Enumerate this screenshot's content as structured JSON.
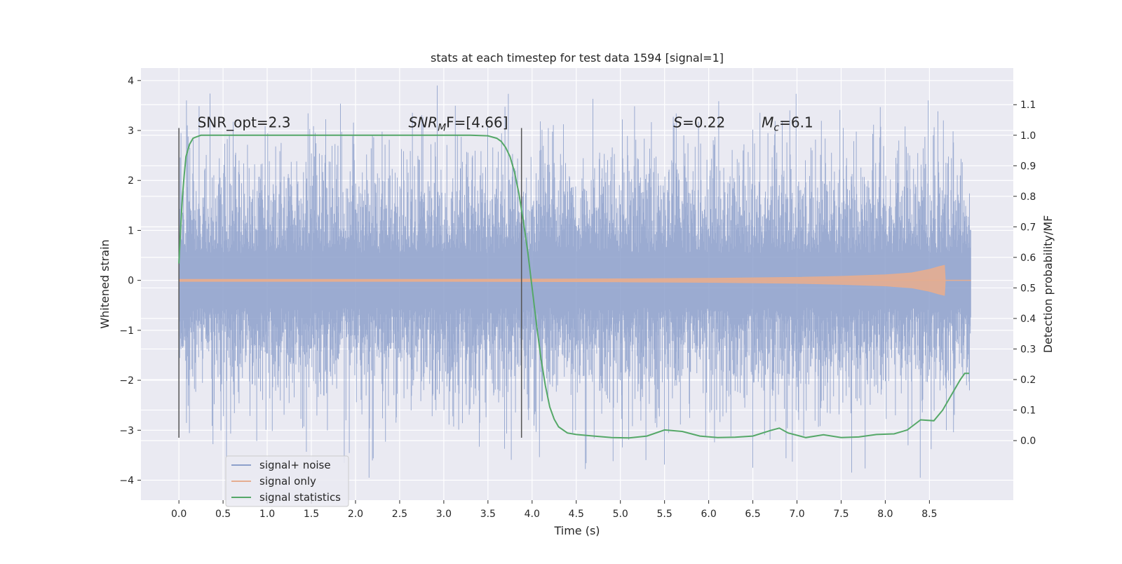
{
  "chart_data": {
    "type": "line",
    "title": "stats at each timestep for test data 1594 [signal=1]",
    "xlabel": "Time (s)",
    "ylabel_left": "Whitened strain",
    "ylabel_right": "Detection probability/MF",
    "xlim": [
      -0.43,
      9.45
    ],
    "ylim_left": [
      -4.4,
      4.25
    ],
    "ylim_right": [
      -0.195,
      1.22
    ],
    "x_ticks": [
      "0.0",
      "0.5",
      "1.0",
      "1.5",
      "2.0",
      "2.5",
      "3.0",
      "3.5",
      "4.0",
      "4.5",
      "5.0",
      "5.5",
      "6.0",
      "6.5",
      "7.0",
      "7.5",
      "8.0",
      "8.5"
    ],
    "y_ticks_left": [
      "4",
      "3",
      "2",
      "1",
      "0",
      "−1",
      "−2",
      "−3",
      "−4"
    ],
    "y_ticks_right": [
      "1.1",
      "1.0",
      "0.9",
      "0.8",
      "0.7",
      "0.6",
      "0.5",
      "0.4",
      "0.3",
      "0.2",
      "0.1",
      "0.0"
    ],
    "grid": true,
    "legend_position": "lower-left",
    "colors": {
      "noise": "#8da0cb",
      "signal": "#e5ad90",
      "stats": "#55a868",
      "marker": "#555555",
      "background": "#eaeaf2",
      "grid": "#ffffff"
    },
    "series": [
      {
        "name": "signal+ noise",
        "style": "dense noise band, roughly ±1.7 with spikes up to ±3.9"
      },
      {
        "name": "signal only",
        "envelope_x": [
          0.0,
          1.0,
          2.0,
          3.0,
          4.0,
          5.0,
          6.0,
          7.0,
          7.5,
          8.0,
          8.3,
          8.5,
          8.6,
          8.67,
          8.68
        ],
        "envelope_y": [
          0.02,
          0.02,
          0.02,
          0.02,
          0.025,
          0.03,
          0.04,
          0.06,
          0.08,
          0.11,
          0.15,
          0.22,
          0.27,
          0.3,
          0.0
        ]
      },
      {
        "name": "signal statistics",
        "x": [
          0.0,
          0.02,
          0.04,
          0.06,
          0.08,
          0.12,
          0.16,
          0.2,
          0.25,
          0.3,
          0.5,
          1.0,
          1.5,
          2.0,
          2.5,
          3.0,
          3.3,
          3.5,
          3.6,
          3.65,
          3.7,
          3.75,
          3.8,
          3.85,
          3.9,
          3.95,
          4.0,
          4.05,
          4.1,
          4.15,
          4.2,
          4.25,
          4.3,
          4.4,
          4.5,
          4.7,
          4.9,
          5.1,
          5.3,
          5.5,
          5.7,
          5.9,
          6.1,
          6.3,
          6.5,
          6.7,
          6.8,
          6.9,
          7.1,
          7.3,
          7.5,
          7.7,
          7.9,
          8.1,
          8.25,
          8.4,
          8.55,
          8.65,
          8.75,
          8.85,
          8.9,
          8.95
        ],
        "y": [
          0.58,
          0.7,
          0.8,
          0.87,
          0.93,
          0.97,
          0.99,
          0.995,
          1.0,
          1.0,
          1.0,
          1.0,
          1.0,
          1.0,
          1.0,
          1.0,
          1.0,
          0.998,
          0.99,
          0.98,
          0.96,
          0.93,
          0.88,
          0.81,
          0.72,
          0.62,
          0.5,
          0.38,
          0.27,
          0.18,
          0.11,
          0.07,
          0.045,
          0.025,
          0.02,
          0.015,
          0.01,
          0.009,
          0.015,
          0.035,
          0.03,
          0.015,
          0.01,
          0.011,
          0.015,
          0.033,
          0.041,
          0.025,
          0.01,
          0.019,
          0.01,
          0.012,
          0.02,
          0.022,
          0.035,
          0.068,
          0.065,
          0.1,
          0.15,
          0.2,
          0.22,
          0.22
        ]
      }
    ],
    "vertical_markers": [
      {
        "x": 0.0,
        "y_range": [
          -3.15,
          3.05
        ]
      },
      {
        "x": 3.88,
        "y_range": [
          -3.15,
          3.05
        ]
      }
    ],
    "annotations": [
      {
        "text": "SNR_opt=2.3",
        "x": 0.21,
        "y": 3.06
      },
      {
        "text_main": "SNR",
        "text_sub": "M",
        "text_rest": "F=[4.66]",
        "x": 2.6,
        "y": 3.06
      },
      {
        "text_main": "S",
        "text_rest": "=0.22",
        "x": 5.6,
        "y": 3.06
      },
      {
        "text_main": "M",
        "text_sub": "c",
        "text_rest": "=6.1",
        "x": 6.6,
        "y": 3.06
      }
    ]
  }
}
